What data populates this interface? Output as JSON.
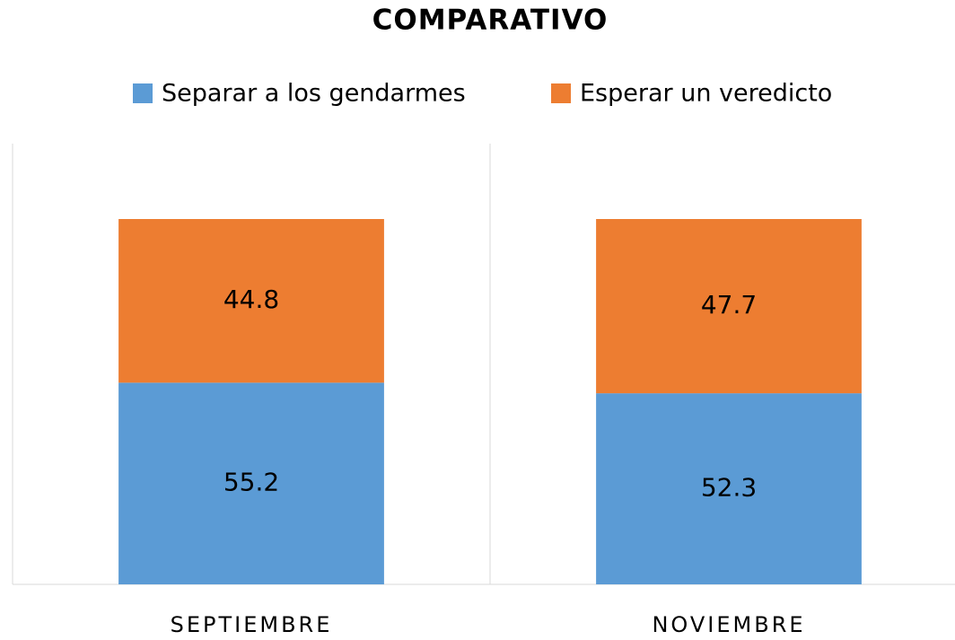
{
  "chart_data": {
    "type": "stacked_bar",
    "title": "COMPARATIVO",
    "categories": [
      "SEPTIEMBRE",
      "NOVIEMBRE"
    ],
    "series": [
      {
        "name": "Separar a los gendarmes",
        "color": "#5b9bd5",
        "values": [
          55.2,
          52.3
        ]
      },
      {
        "name": "Esperar un veredicto",
        "color": "#ed7d31",
        "values": [
          44.8,
          47.7
        ]
      }
    ],
    "legend": "top"
  }
}
